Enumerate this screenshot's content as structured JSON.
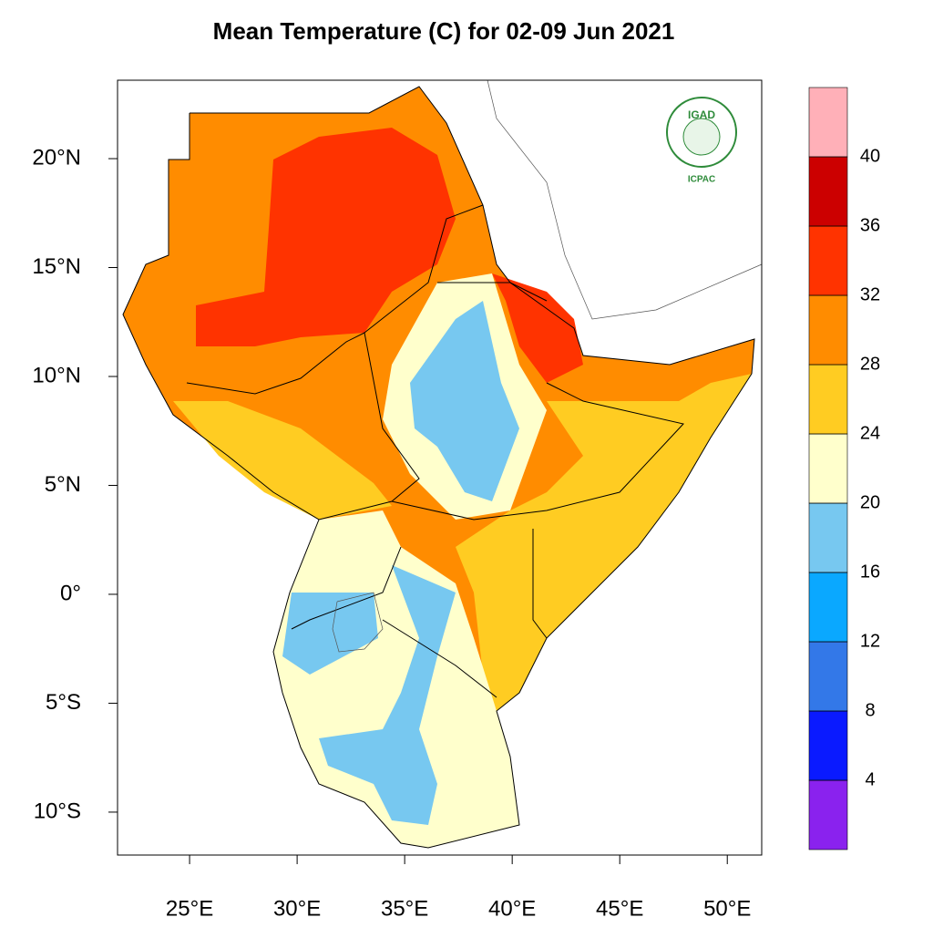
{
  "title": "Mean Temperature (C) for 02-09 Jun 2021",
  "map": {
    "lon_lim": [
      21.65,
      51.6
    ],
    "lat_lim": [
      -11.97,
      23.6
    ],
    "lat_ticks": [
      {
        "value": 20,
        "label": "20°N"
      },
      {
        "value": 15,
        "label": "15°N"
      },
      {
        "value": 10,
        "label": "10°N"
      },
      {
        "value": 5,
        "label": "5°N"
      },
      {
        "value": 0,
        "label": "0°"
      },
      {
        "value": -5,
        "label": "5°S"
      },
      {
        "value": -10,
        "label": "10°S"
      }
    ],
    "lon_ticks": [
      {
        "value": 25,
        "label": "25°E"
      },
      {
        "value": 30,
        "label": "30°E"
      },
      {
        "value": 35,
        "label": "35°E"
      },
      {
        "value": 40,
        "label": "40°E"
      },
      {
        "value": 45,
        "label": "45°E"
      },
      {
        "value": 50,
        "label": "50°E"
      }
    ]
  },
  "colorbar": {
    "lim": [
      0,
      44
    ],
    "levels": [
      4,
      8,
      12,
      16,
      20,
      24,
      28,
      32,
      36,
      40
    ],
    "colors": [
      "#8a22ee",
      "#0a1aff",
      "#3378e8",
      "#0aa8ff",
      "#77c8f0",
      "#ffffcc",
      "#ffcc22",
      "#ff8c00",
      "#ff3300",
      "#cc0000",
      "#ffb0b8"
    ]
  },
  "logo": {
    "name": "IGAD",
    "org": "ICPAC"
  }
}
